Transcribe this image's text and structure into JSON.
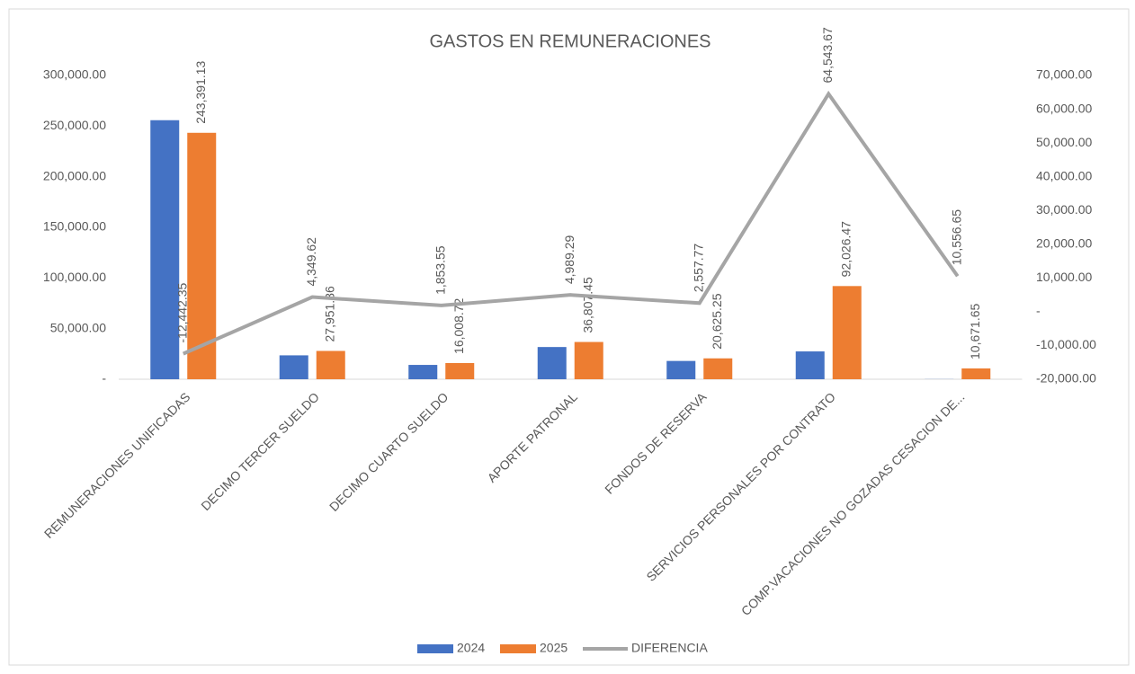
{
  "chart_data": {
    "type": "bar",
    "title": "GASTOS EN REMUNERACIONES",
    "categories": [
      "REMUNERACIONES UNIFICADAS",
      "DECIMO TERCER SUELDO",
      "DECIMO CUARTO SUELDO",
      "APORTE PATRONAL",
      "FONDOS DE RESERVA",
      "SERVICIOS PERSONALES POR CONTRATO",
      "COMP.VACACIONES NO GOZADAS CESACION DE..."
    ],
    "series": [
      {
        "name": "2024",
        "color": "#4472c4",
        "values": [
          255833.48,
          23601.74,
          14155.17,
          31818.16,
          18067.48,
          27482.8,
          115
        ]
      },
      {
        "name": "2025",
        "color": "#ed7d31",
        "values": [
          243391.13,
          27951.36,
          16008.72,
          36807.45,
          20625.25,
          92026.47,
          10671.65
        ],
        "value_labels": [
          "243,391.13",
          "27,951.36",
          "16,008.72",
          "36,807.45",
          "20,625.25",
          "92,026.47",
          "10,671.65"
        ]
      },
      {
        "name": "DIFERENCIA",
        "color": "#a5a5a5",
        "type": "line",
        "axis": "y2",
        "values": [
          -12442.35,
          4349.62,
          1853.55,
          4989.29,
          2557.77,
          64543.67,
          10556.65
        ],
        "value_labels": [
          "-12,442.35",
          "4,349.62",
          "1,853.55",
          "4,989.29",
          "2,557.77",
          "64,543.67",
          "10,556.65"
        ]
      }
    ],
    "ylim": [
      0,
      300000
    ],
    "yticks": [
      {
        "value": 0,
        "label": "-"
      },
      {
        "value": 50000,
        "label": "50,000.00"
      },
      {
        "value": 100000,
        "label": "100,000.00"
      },
      {
        "value": 150000,
        "label": "150,000.00"
      },
      {
        "value": 200000,
        "label": "200,000.00"
      },
      {
        "value": 250000,
        "label": "250,000.00"
      },
      {
        "value": 300000,
        "label": "300,000.00"
      }
    ],
    "y2lim": [
      -20000,
      70000
    ],
    "y2ticks": [
      {
        "value": -20000,
        "label": "-20,000.00"
      },
      {
        "value": -10000,
        "label": "-10,000.00"
      },
      {
        "value": 0,
        "label": "-"
      },
      {
        "value": 10000,
        "label": "10,000.00"
      },
      {
        "value": 20000,
        "label": "20,000.00"
      },
      {
        "value": 30000,
        "label": "30,000.00"
      },
      {
        "value": 40000,
        "label": "40,000.00"
      },
      {
        "value": 50000,
        "label": "50,000.00"
      },
      {
        "value": 60000,
        "label": "60,000.00"
      },
      {
        "value": 70000,
        "label": "70,000.00"
      }
    ],
    "grid": false,
    "legend": "bottom"
  }
}
